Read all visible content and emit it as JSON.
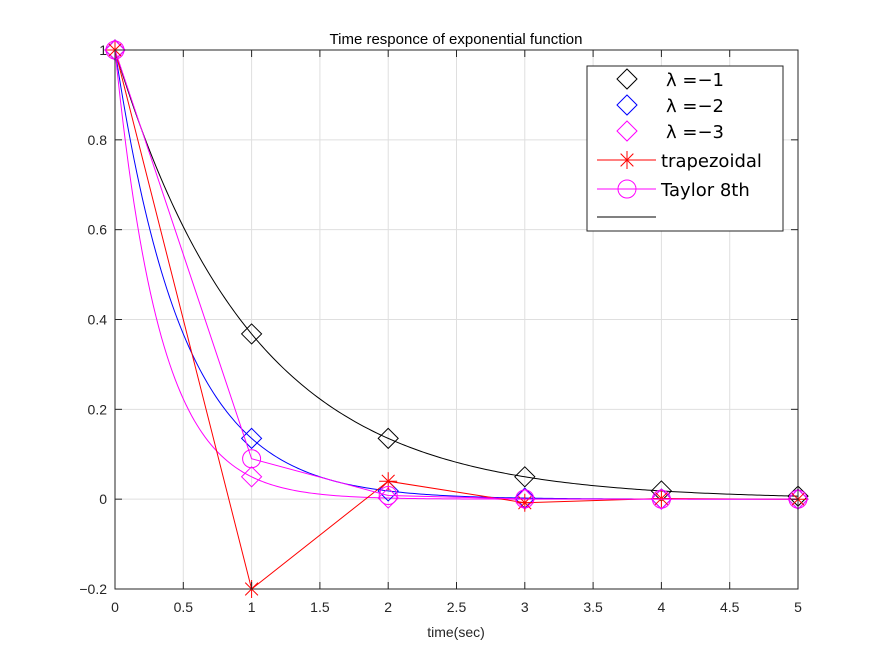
{
  "chart_data": {
    "type": "line",
    "title": "Time responce of exponential function",
    "xlabel": "time(sec)",
    "ylabel": "",
    "xlim": [
      0,
      5
    ],
    "ylim": [
      -0.2,
      1
    ],
    "grid": true,
    "legend_position": "top-right",
    "x_ticks": [
      0,
      0.5,
      1,
      1.5,
      2,
      2.5,
      3,
      3.5,
      4,
      4.5,
      5
    ],
    "x_tick_labels": [
      "0",
      "0.5",
      "1",
      "1.5",
      "2",
      "2.5",
      "3",
      "3.5",
      "4",
      "4.5",
      "5"
    ],
    "y_ticks": [
      -0.2,
      0,
      0.2,
      0.4,
      0.6,
      0.8,
      1
    ],
    "y_tick_labels": [
      "−0.2",
      "0",
      "0.2",
      "0.4",
      "0.6",
      "0.8",
      "1"
    ],
    "curves": [
      {
        "lambda": -1,
        "color": "#000000"
      },
      {
        "lambda": -2,
        "color": "#0000ff"
      },
      {
        "lambda": -3,
        "color": "#ff00ff"
      }
    ],
    "series": [
      {
        "name": "λ =−1",
        "color": "#000000",
        "marker": "diamond",
        "line": false,
        "x": [
          0,
          1,
          2,
          3,
          4,
          5
        ],
        "y": [
          1,
          0.3679,
          0.1353,
          0.0498,
          0.0183,
          0.0067
        ]
      },
      {
        "name": "λ =−2",
        "color": "#0000ff",
        "marker": "diamond",
        "line": false,
        "x": [
          0,
          1,
          2,
          3,
          4,
          5
        ],
        "y": [
          1,
          0.1353,
          0.0183,
          0.0025,
          0.0003,
          0.0
        ]
      },
      {
        "name": "λ =−3",
        "color": "#ff00ff",
        "marker": "diamond",
        "line": false,
        "x": [
          0,
          1,
          2,
          3,
          4,
          5
        ],
        "y": [
          1,
          0.0498,
          0.0025,
          0.0001,
          0.0,
          0.0
        ]
      },
      {
        "name": "trapezoidal",
        "color": "#ff0000",
        "marker": "star",
        "line": true,
        "x": [
          0,
          1,
          2,
          3,
          4,
          5
        ],
        "y": [
          1,
          -0.2,
          0.04,
          -0.008,
          0.0016,
          -0.0003
        ]
      },
      {
        "name": "Taylor 8th",
        "color": "#ff00ff",
        "marker": "circle",
        "line": true,
        "x": [
          0,
          1,
          2,
          3,
          4,
          5
        ],
        "y": [
          1,
          0.09,
          0.0081,
          0.0007,
          0.0001,
          0.0
        ]
      }
    ]
  }
}
